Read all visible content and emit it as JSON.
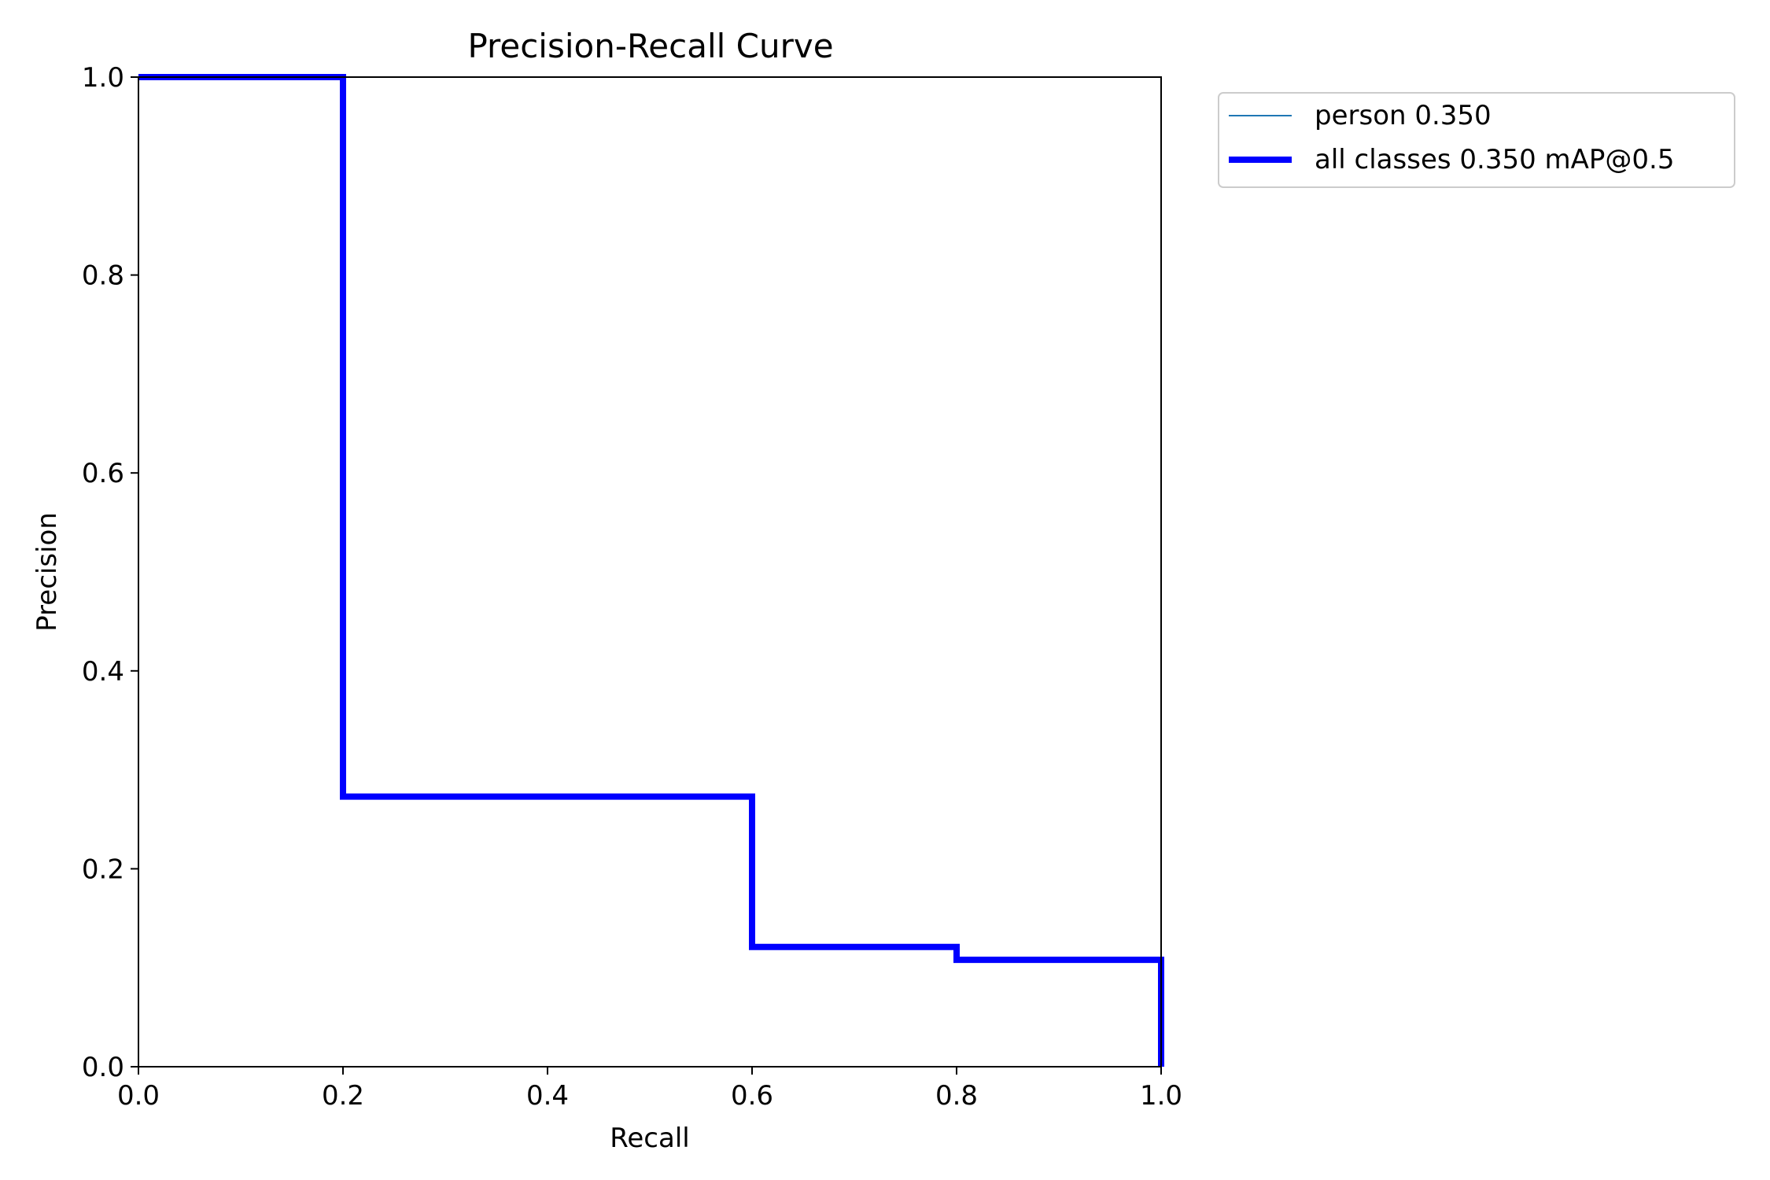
{
  "chart_data": {
    "type": "line",
    "title": "Precision-Recall Curve",
    "xlabel": "Recall",
    "ylabel": "Precision",
    "xlim": [
      0,
      1
    ],
    "ylim": [
      0,
      1
    ],
    "xticks": [
      "0.0",
      "0.2",
      "0.4",
      "0.6",
      "0.8",
      "1.0"
    ],
    "yticks": [
      "0.0",
      "0.2",
      "0.4",
      "0.6",
      "0.8",
      "1.0"
    ],
    "grid": false,
    "legend_placement": "outside-top-right",
    "series": [
      {
        "name": "person 0.350",
        "color": "#1f77b4",
        "x": [
          0.0,
          0.2,
          0.2,
          0.6,
          0.6,
          0.8,
          0.8,
          1.0,
          1.0
        ],
        "y": [
          1.0,
          1.0,
          0.273,
          0.273,
          0.121,
          0.121,
          0.108,
          0.108,
          0.0
        ]
      },
      {
        "name": "all classes 0.350 mAP@0.5",
        "color": "#0000ff",
        "x": [
          0.0,
          0.2,
          0.2,
          0.6,
          0.6,
          0.8,
          0.8,
          1.0,
          1.0
        ],
        "y": [
          1.0,
          1.0,
          0.273,
          0.273,
          0.121,
          0.121,
          0.108,
          0.108,
          0.0
        ]
      }
    ]
  }
}
